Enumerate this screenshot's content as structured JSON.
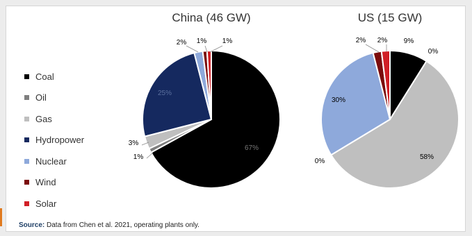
{
  "legend": [
    {
      "label": "Coal",
      "color": "#000000"
    },
    {
      "label": "Oil",
      "color": "#7f7f7f"
    },
    {
      "label": "Gas",
      "color": "#bfbfbf"
    },
    {
      "label": "Hydropower",
      "color": "#15295f"
    },
    {
      "label": "Nuclear",
      "color": "#8ea9db"
    },
    {
      "label": "Wind",
      "color": "#7b0c0c"
    },
    {
      "label": "Solar",
      "color": "#d11f26"
    }
  ],
  "source": {
    "label": "Source:",
    "text": " Data from Chen et al. 2021, operating plants only."
  },
  "chart_data": [
    {
      "type": "pie",
      "title": "China (46 GW)",
      "categories": [
        "Coal",
        "Oil",
        "Gas",
        "Hydropower",
        "Nuclear",
        "Wind",
        "Solar"
      ],
      "values": [
        67,
        1,
        3,
        25,
        2,
        1,
        1
      ],
      "labels": [
        "67%",
        "1%",
        "3%",
        "25%",
        "2%",
        "1%",
        "1%"
      ]
    },
    {
      "type": "pie",
      "title": "US (15 GW)",
      "categories": [
        "Coal",
        "Oil",
        "Gas",
        "Hydropower",
        "Nuclear",
        "Wind",
        "Solar"
      ],
      "values": [
        9,
        0,
        58,
        0,
        30,
        2,
        2
      ],
      "labels": [
        "9%",
        "0%",
        "58%",
        "0%",
        "30%",
        "2%",
        "2%"
      ]
    }
  ]
}
